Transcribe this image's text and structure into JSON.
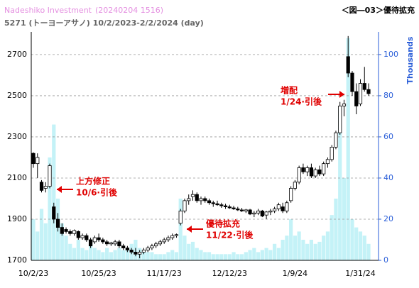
{
  "chart_data": {
    "type": "candlestick",
    "watermark": "Nadeshiko Investment",
    "timestamp": "(20240204 1516)",
    "title": "5271 (トーヨーアサノ) 10/2/2023-2/2/2024 (day)",
    "badge": "＜図―03＞優待拡充",
    "y2_label": "Thousands",
    "categories": [
      "10/2/23",
      null,
      null,
      null,
      null,
      null,
      null,
      null,
      null,
      null,
      null,
      null,
      null,
      null,
      null,
      null,
      "10/25/23",
      null,
      null,
      null,
      null,
      null,
      null,
      null,
      null,
      null,
      null,
      null,
      null,
      null,
      null,
      null,
      "11/17/23",
      null,
      null,
      null,
      null,
      null,
      null,
      null,
      null,
      null,
      null,
      null,
      null,
      null,
      null,
      null,
      "12/12/23",
      null,
      null,
      null,
      null,
      null,
      null,
      null,
      null,
      null,
      null,
      null,
      null,
      null,
      null,
      null,
      "1/9/24",
      null,
      null,
      null,
      null,
      null,
      null,
      null,
      null,
      null,
      null,
      null,
      null,
      null,
      null,
      null,
      "1/31/24",
      null,
      null
    ],
    "open": [
      2220,
      2170,
      2080,
      2050,
      2060,
      1960,
      1900,
      1860,
      1850,
      1840,
      1830,
      1840,
      1810,
      1820,
      1800,
      1790,
      1810,
      1800,
      1790,
      1780,
      1780,
      1790,
      1770,
      1760,
      1750,
      1740,
      1730,
      1740,
      1750,
      1760,
      1770,
      1780,
      1790,
      1800,
      1810,
      1820,
      1880,
      1940,
      1990,
      2010,
      2020,
      1990,
      2000,
      1990,
      1980,
      1975,
      1970,
      1965,
      1960,
      1955,
      1950,
      1945,
      1940,
      1945,
      1925,
      1930,
      1940,
      1920,
      1935,
      1940,
      1950,
      1960,
      1940,
      1990,
      2050,
      2080,
      2150,
      2130,
      2150,
      2110,
      2140,
      2120,
      2170,
      2190,
      2250,
      2320,
      2450,
      2690,
      2610,
      2520,
      2460,
      2560,
      2530
    ],
    "high": [
      2225,
      2220,
      2090,
      2080,
      2170,
      1980,
      1930,
      1880,
      1860,
      1850,
      1850,
      1845,
      1830,
      1830,
      1810,
      1820,
      1830,
      1810,
      1800,
      1790,
      1800,
      1800,
      1780,
      1770,
      1760,
      1760,
      1750,
      1760,
      1770,
      1780,
      1790,
      1800,
      1810,
      1820,
      1830,
      1830,
      1950,
      2000,
      2020,
      2040,
      2030,
      2010,
      2010,
      2000,
      1990,
      1990,
      1980,
      1975,
      1970,
      1965,
      1960,
      1955,
      1950,
      1950,
      1940,
      1950,
      1945,
      1940,
      1950,
      1960,
      1980,
      1980,
      1990,
      2060,
      2090,
      2160,
      2170,
      2160,
      2170,
      2150,
      2160,
      2180,
      2200,
      2260,
      2330,
      2470,
      2480,
      2790,
      2620,
      2560,
      2580,
      2640,
      2560
    ],
    "low": [
      2150,
      2100,
      2030,
      2030,
      2050,
      1880,
      1840,
      1820,
      1830,
      1820,
      1820,
      1800,
      1800,
      1790,
      1760,
      1780,
      1790,
      1780,
      1770,
      1770,
      1770,
      1760,
      1750,
      1740,
      1730,
      1720,
      1710,
      1730,
      1740,
      1750,
      1760,
      1770,
      1780,
      1790,
      1800,
      1810,
      1870,
      1930,
      1970,
      1990,
      1980,
      1970,
      1980,
      1970,
      1960,
      1965,
      1955,
      1950,
      1950,
      1945,
      1940,
      1935,
      1930,
      1920,
      1910,
      1920,
      1910,
      1900,
      1920,
      1930,
      1940,
      1930,
      1930,
      1980,
      2040,
      2070,
      2120,
      2110,
      2100,
      2100,
      2110,
      2110,
      2150,
      2180,
      2240,
      2310,
      2400,
      2590,
      2500,
      2410,
      2450,
      2520,
      2500
    ],
    "close": [
      2170,
      2200,
      2040,
      2060,
      2160,
      1900,
      1860,
      1830,
      1840,
      1830,
      1845,
      1810,
      1820,
      1800,
      1770,
      1810,
      1800,
      1790,
      1780,
      1785,
      1790,
      1770,
      1760,
      1750,
      1740,
      1730,
      1740,
      1750,
      1760,
      1770,
      1780,
      1790,
      1800,
      1810,
      1820,
      1825,
      1940,
      1990,
      2000,
      2020,
      1990,
      2000,
      1990,
      1980,
      1975,
      1970,
      1965,
      1960,
      1955,
      1950,
      1945,
      1940,
      1945,
      1925,
      1930,
      1940,
      1915,
      1935,
      1940,
      1950,
      1970,
      1940,
      1980,
      2050,
      2080,
      2150,
      2130,
      2150,
      2110,
      2140,
      2120,
      2170,
      2190,
      2250,
      2320,
      2450,
      2460,
      2610,
      2520,
      2450,
      2560,
      2530,
      2510
    ],
    "volume": [
      20,
      14,
      25,
      18,
      50,
      66,
      30,
      18,
      12,
      8,
      6,
      10,
      6,
      5,
      8,
      6,
      5,
      4,
      6,
      4,
      5,
      6,
      5,
      6,
      8,
      10,
      6,
      5,
      4,
      4,
      3,
      3,
      3,
      4,
      5,
      4,
      30,
      12,
      8,
      9,
      6,
      5,
      4,
      4,
      3,
      3,
      3,
      3,
      3,
      4,
      3,
      3,
      4,
      5,
      6,
      4,
      5,
      6,
      5,
      8,
      6,
      10,
      12,
      20,
      12,
      14,
      10,
      8,
      10,
      8,
      9,
      12,
      14,
      22,
      30,
      74,
      40,
      108,
      20,
      16,
      14,
      12,
      8
    ],
    "volume_color": "#c4f2f7",
    "ylim": [
      1700,
      2810
    ],
    "yticks": [
      1700,
      1900,
      2100,
      2300,
      2500,
      2700
    ],
    "y2lim": [
      0,
      111
    ],
    "y2ticks": [
      0,
      20,
      40,
      60,
      80,
      100
    ],
    "grid": true,
    "annotations": [
      {
        "lines": [
          "上方修正",
          "10/6·引後"
        ]
      },
      {
        "lines": [
          "優待拡充",
          "11/22·引後"
        ]
      },
      {
        "lines": [
          "増配",
          "1/24·引後"
        ]
      }
    ]
  }
}
